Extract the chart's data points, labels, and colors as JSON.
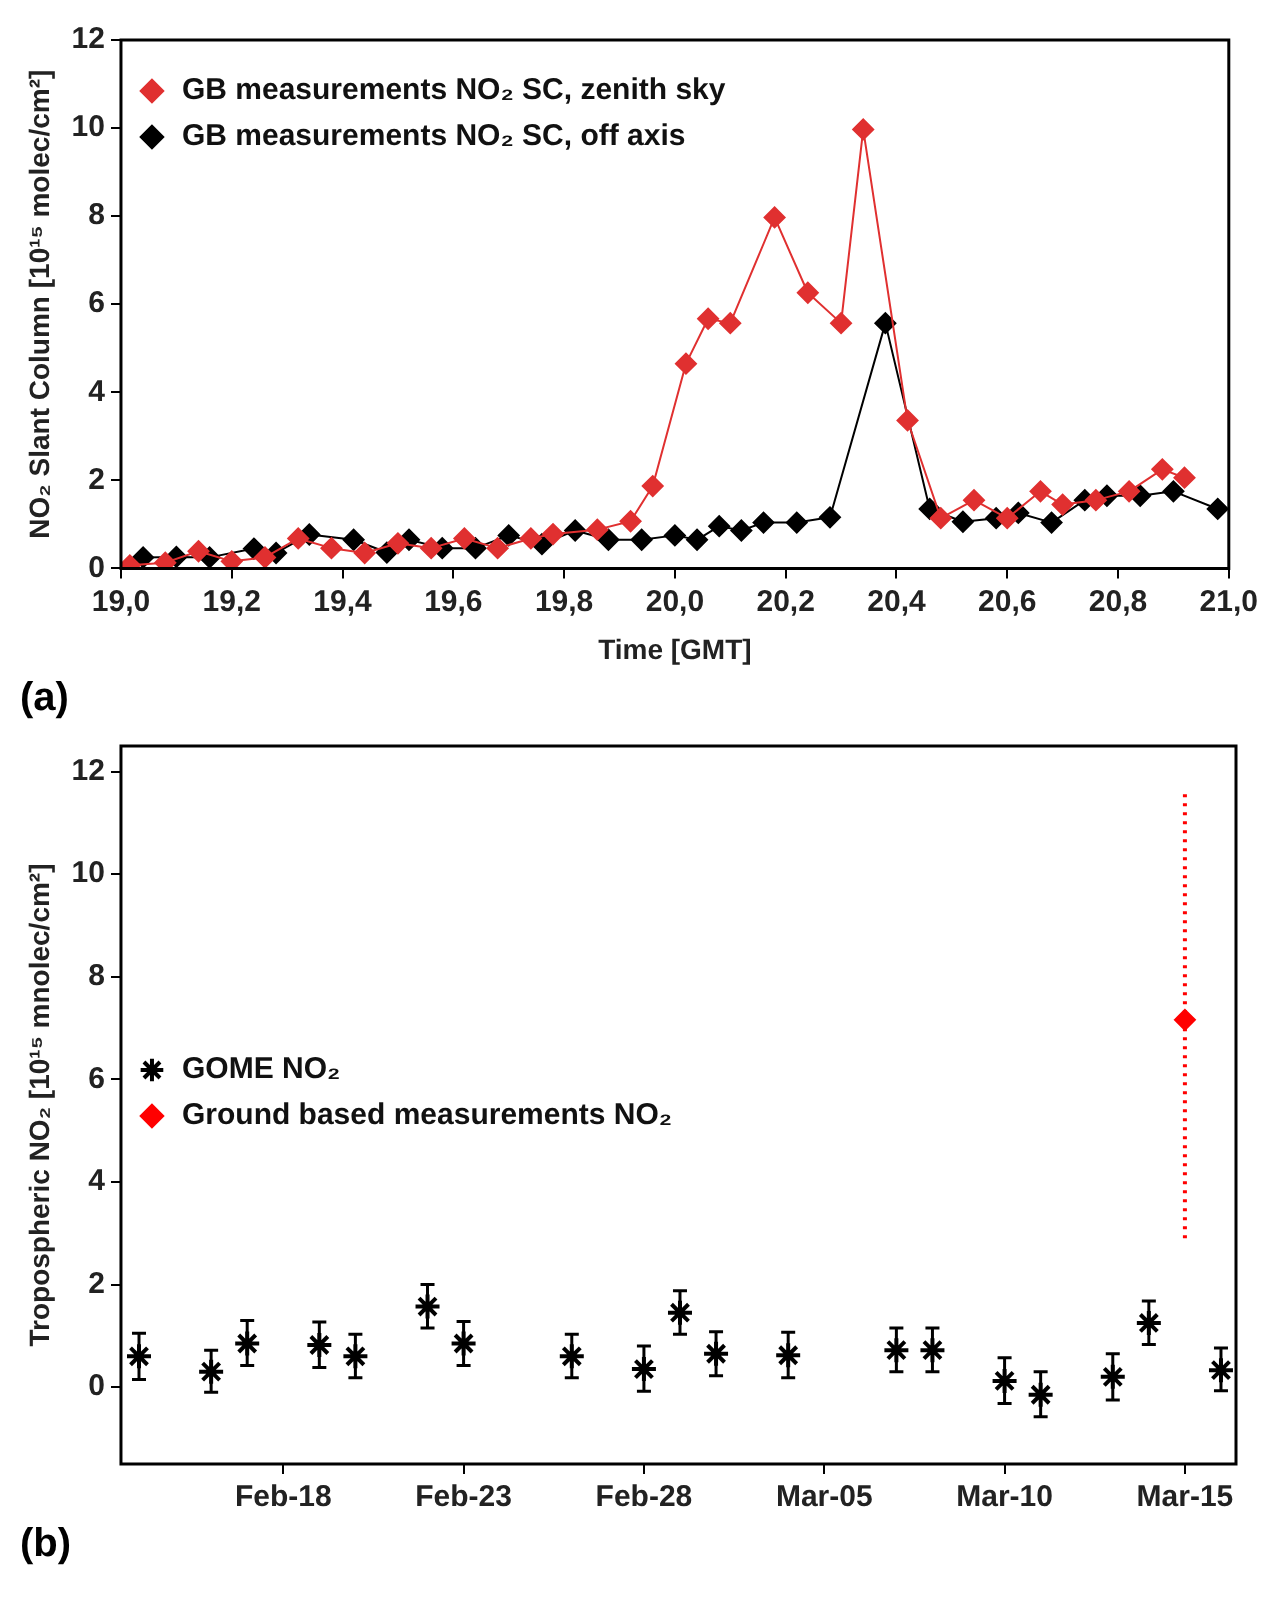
{
  "chart_data": [
    {
      "type": "line",
      "xlabel": "Time [GMT]",
      "ylabel": "NO₂ Slant Column [10¹⁵ molec/cm²]",
      "annotations": [
        "(a)"
      ],
      "xlim": [
        19,
        21
      ],
      "xticks": [
        {
          "value": 19,
          "label": "19,0"
        },
        {
          "value": 19.2,
          "label": "19,2"
        },
        {
          "value": 19.4,
          "label": "19,4"
        },
        {
          "value": 19.6,
          "label": "19,6"
        },
        {
          "value": 19.8,
          "label": "19,8"
        },
        {
          "value": 20,
          "label": "20,0"
        },
        {
          "value": 20.2,
          "label": "20,2"
        },
        {
          "value": 20.4,
          "label": "20,4"
        },
        {
          "value": 20.6,
          "label": "20,6"
        },
        {
          "value": 20.8,
          "label": "20,8"
        },
        {
          "value": 21,
          "label": "21,0"
        }
      ],
      "ylim": [
        0,
        12
      ],
      "yticks": [
        0,
        2,
        4,
        6,
        8,
        10,
        12
      ],
      "grid": false,
      "legend": "top left",
      "marker": "diamond",
      "line_style": "solid",
      "series": [
        {
          "name": "GB measurements NO₂ SC, zenith sky",
          "color": "#e03030",
          "x": [
            19.016,
            19.08,
            19.14,
            19.2,
            19.26,
            19.32,
            19.38,
            19.44,
            19.5,
            19.56,
            19.62,
            19.68,
            19.74,
            19.78,
            19.86,
            19.92,
            19.96,
            20.02,
            20.06,
            20.1,
            20.18,
            20.24,
            20.3,
            20.34,
            20.42,
            20.48,
            20.54,
            20.6,
            20.66,
            20.7,
            20.76,
            20.82,
            20.88,
            20.92
          ],
          "values": [
            0.07,
            0.13,
            0.39,
            0.16,
            0.25,
            0.68,
            0.46,
            0.35,
            0.57,
            0.46,
            0.68,
            0.46,
            0.68,
            0.78,
            0.88,
            1.07,
            1.87,
            4.65,
            5.67,
            5.57,
            7.97,
            6.26,
            5.57,
            9.97,
            3.36,
            1.14,
            1.55,
            1.14,
            1.75,
            1.45,
            1.55,
            1.75,
            2.25,
            2.06
          ]
        },
        {
          "name": "GB measurements NO₂ SC, off axis",
          "color": "#000000",
          "x": [
            19.04,
            19.1,
            19.16,
            19.24,
            19.28,
            19.34,
            19.42,
            19.48,
            19.52,
            19.58,
            19.64,
            19.7,
            19.76,
            19.82,
            19.88,
            19.94,
            20.0,
            20.04,
            20.08,
            20.12,
            20.16,
            20.22,
            20.28,
            20.38,
            20.46,
            20.52,
            20.58,
            20.62,
            20.68,
            20.74,
            20.78,
            20.84,
            20.9,
            20.98
          ],
          "values": [
            0.25,
            0.26,
            0.25,
            0.45,
            0.35,
            0.77,
            0.65,
            0.36,
            0.65,
            0.46,
            0.46,
            0.75,
            0.55,
            0.86,
            0.65,
            0.65,
            0.75,
            0.65,
            0.96,
            0.86,
            1.04,
            1.04,
            1.16,
            5.57,
            1.35,
            1.06,
            1.14,
            1.26,
            1.04,
            1.55,
            1.65,
            1.65,
            1.75,
            1.35
          ]
        }
      ]
    },
    {
      "type": "scatter",
      "ylabel": "Tropospheric NO₂ [10¹⁵ mnolec/cm²]",
      "annotations": [
        "(b)"
      ],
      "xlim": [
        "--02-13T12:00",
        "--03-16T10:00"
      ],
      "xticks": [
        {
          "value": "--02-18",
          "label": "Feb-18"
        },
        {
          "value": "--02-23",
          "label": "Feb-23"
        },
        {
          "value": "--02-28",
          "label": "Feb-28"
        },
        {
          "value": "--03-05",
          "label": "Mar-05"
        },
        {
          "value": "--03-10",
          "label": "Mar-10"
        },
        {
          "value": "--03-15",
          "label": "Mar-15"
        }
      ],
      "ylim": [
        -1.5,
        12.5
      ],
      "yticks": [
        0,
        2,
        4,
        6,
        8,
        10,
        12
      ],
      "grid": false,
      "legend": "left",
      "series": [
        {
          "name": "GOME NO₂",
          "color": "#000000",
          "marker": "cross",
          "line_style": "solid",
          "x": [
            "--02-14",
            "--02-16",
            "--02-17",
            "--02-19",
            "--02-20",
            "--02-22",
            "--02-23",
            "--02-26",
            "--02-28",
            "--03-01",
            "--03-02",
            "--03-04",
            "--03-07",
            "--03-08",
            "--03-10",
            "--03-11",
            "--03-13",
            "--03-14",
            "--03-16"
          ],
          "values": [
            0.6,
            0.3,
            0.85,
            0.82,
            0.6,
            1.57,
            0.85,
            0.6,
            0.35,
            1.45,
            0.65,
            0.62,
            0.72,
            0.72,
            0.12,
            -0.15,
            0.2,
            1.25,
            0.33
          ],
          "errors": [
            [
              0.15,
              1.05
            ],
            [
              -0.1,
              0.72
            ],
            [
              0.42,
              1.3
            ],
            [
              0.38,
              1.27
            ],
            [
              0.18,
              1.03
            ],
            [
              1.15,
              2.0
            ],
            [
              0.42,
              1.28
            ],
            [
              0.18,
              1.03
            ],
            [
              -0.08,
              0.8
            ],
            [
              1.03,
              1.88
            ],
            [
              0.22,
              1.08
            ],
            [
              0.18,
              1.07
            ],
            [
              0.3,
              1.15
            ],
            [
              0.3,
              1.15
            ],
            [
              -0.32,
              0.57
            ],
            [
              -0.58,
              0.3
            ],
            [
              -0.25,
              0.65
            ],
            [
              0.83,
              1.68
            ],
            [
              -0.07,
              0.76
            ]
          ]
        },
        {
          "name": "Ground based measurements NO₂",
          "color": "#ff0000",
          "marker": "diamond",
          "line_style": "dotted",
          "x": [
            "--03-15"
          ],
          "values": [
            7.16
          ],
          "errors": [
            [
              2.9,
              11.6
            ]
          ]
        }
      ]
    }
  ]
}
